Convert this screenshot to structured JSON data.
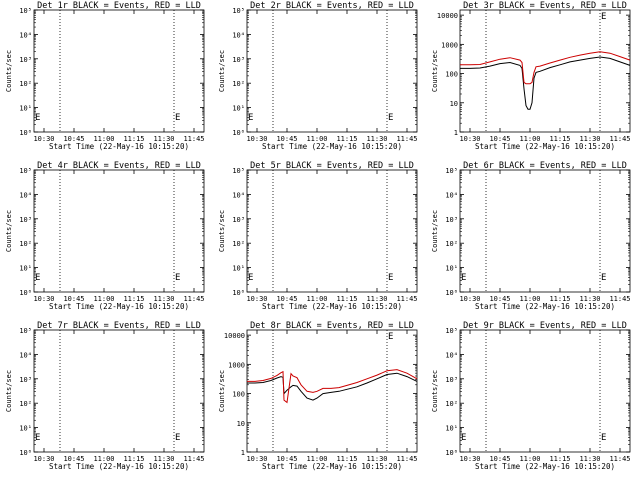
{
  "chart_data": [
    {
      "type": "line",
      "title": "Det 1r BLACK = Events, RED = LLD",
      "xlabel": "Start Time (22-May-16 10:15:20)",
      "ylabel": "Counts/sec",
      "x_ticks": [
        "10:30",
        "10:45",
        "11:00",
        "11:15",
        "11:30",
        "11:45"
      ],
      "y_scale": "log",
      "y_ticks": [
        "10⁰",
        "10¹",
        "10²",
        "10³",
        "10⁴",
        "10⁵"
      ],
      "ylim": [
        1,
        100000
      ],
      "xlim_minutes": [
        10,
        95
      ],
      "markers": [
        "E",
        "E"
      ],
      "marker_x_minutes": [
        10,
        80
      ],
      "dotted_x_minutes": [
        23,
        80
      ],
      "series": []
    },
    {
      "type": "line",
      "title": "Det 2r BLACK = Events, RED = LLD",
      "xlabel": "Start Time (22-May-16 10:15:20)",
      "ylabel": "Counts/sec",
      "x_ticks": [
        "10:30",
        "10:45",
        "11:00",
        "11:15",
        "11:30",
        "11:45"
      ],
      "y_scale": "log",
      "y_ticks": [
        "10⁰",
        "10¹",
        "10²",
        "10³",
        "10⁴",
        "10⁵"
      ],
      "ylim": [
        1,
        100000
      ],
      "xlim_minutes": [
        10,
        95
      ],
      "markers": [
        "E",
        "E"
      ],
      "marker_x_minutes": [
        10,
        80
      ],
      "dotted_x_minutes": [
        23,
        80
      ],
      "series": []
    },
    {
      "type": "line",
      "title": "Det 3r BLACK = Events, RED = LLD",
      "xlabel": "Start Time (22-May-16 10:15:20)",
      "ylabel": "Counts/sec",
      "x_ticks": [
        "10:30",
        "10:45",
        "11:00",
        "11:15",
        "11:30",
        "11:45"
      ],
      "y_scale": "log",
      "y_ticks": [
        "1",
        "10",
        "100",
        "1000",
        "10000"
      ],
      "ylim": [
        1,
        15000
      ],
      "xlim_minutes": [
        10,
        95
      ],
      "markers": [
        "E"
      ],
      "marker_x_minutes": [
        80
      ],
      "dotted_x_minutes": [
        23,
        80
      ],
      "series": [
        {
          "color": "#000000",
          "x": [
            10,
            15,
            20,
            25,
            30,
            35,
            40,
            41,
            42,
            43,
            44,
            45,
            46,
            47,
            48,
            50,
            55,
            60,
            65,
            70,
            75,
            80,
            85,
            90,
            95
          ],
          "y": [
            150,
            150,
            155,
            180,
            220,
            240,
            190,
            150,
            30,
            8,
            6,
            6,
            10,
            70,
            110,
            120,
            160,
            200,
            250,
            290,
            330,
            370,
            330,
            250,
            190
          ]
        },
        {
          "color": "#cc0000",
          "x": [
            10,
            15,
            20,
            25,
            30,
            35,
            40,
            41,
            42,
            43,
            44,
            45,
            46,
            47,
            48,
            50,
            55,
            60,
            65,
            70,
            75,
            80,
            85,
            90,
            95
          ],
          "y": [
            200,
            200,
            205,
            250,
            310,
            350,
            290,
            240,
            50,
            45,
            45,
            45,
            50,
            110,
            170,
            180,
            230,
            290,
            360,
            430,
            500,
            560,
            500,
            380,
            290
          ]
        }
      ]
    },
    {
      "type": "line",
      "title": "Det 4r BLACK = Events, RED = LLD",
      "xlabel": "Start Time (22-May-16 10:15:20)",
      "ylabel": "Counts/sec",
      "x_ticks": [
        "10:30",
        "10:45",
        "11:00",
        "11:15",
        "11:30",
        "11:45"
      ],
      "y_scale": "log",
      "y_ticks": [
        "10⁰",
        "10¹",
        "10²",
        "10³",
        "10⁴",
        "10⁵"
      ],
      "ylim": [
        1,
        100000
      ],
      "xlim_minutes": [
        10,
        95
      ],
      "markers": [
        "E",
        "E"
      ],
      "marker_x_minutes": [
        10,
        80
      ],
      "dotted_x_minutes": [
        23,
        80
      ],
      "series": []
    },
    {
      "type": "line",
      "title": "Det 5r BLACK = Events, RED = LLD",
      "xlabel": "Start Time (22-May-16 10:15:20)",
      "ylabel": "Counts/sec",
      "x_ticks": [
        "10:30",
        "10:45",
        "11:00",
        "11:15",
        "11:30",
        "11:45"
      ],
      "y_scale": "log",
      "y_ticks": [
        "10⁰",
        "10¹",
        "10²",
        "10³",
        "10⁴",
        "10⁵"
      ],
      "ylim": [
        1,
        100000
      ],
      "xlim_minutes": [
        10,
        95
      ],
      "markers": [
        "E",
        "E"
      ],
      "marker_x_minutes": [
        10,
        80
      ],
      "dotted_x_minutes": [
        23,
        80
      ],
      "series": []
    },
    {
      "type": "line",
      "title": "Det 6r BLACK = Events, RED = LLD",
      "xlabel": "Start Time (22-May-16 10:15:20)",
      "ylabel": "Counts/sec",
      "x_ticks": [
        "10:30",
        "10:45",
        "11:00",
        "11:15",
        "11:30",
        "11:45"
      ],
      "y_scale": "log",
      "y_ticks": [
        "10⁰",
        "10¹",
        "10²",
        "10³",
        "10⁴",
        "10⁵"
      ],
      "ylim": [
        1,
        100000
      ],
      "xlim_minutes": [
        10,
        95
      ],
      "markers": [
        "E",
        "E"
      ],
      "marker_x_minutes": [
        10,
        80
      ],
      "dotted_x_minutes": [
        23,
        80
      ],
      "series": []
    },
    {
      "type": "line",
      "title": "Det 7r BLACK = Events, RED = LLD",
      "xlabel": "Start Time (22-May-16 10:15:20)",
      "ylabel": "Counts/sec",
      "x_ticks": [
        "10:30",
        "10:45",
        "11:00",
        "11:15",
        "11:30",
        "11:45"
      ],
      "y_scale": "log",
      "y_ticks": [
        "10⁰",
        "10¹",
        "10²",
        "10³",
        "10⁴",
        "10⁵"
      ],
      "ylim": [
        1,
        100000
      ],
      "xlim_minutes": [
        10,
        95
      ],
      "markers": [
        "E",
        "E"
      ],
      "marker_x_minutes": [
        10,
        80
      ],
      "dotted_x_minutes": [
        23,
        80
      ],
      "series": []
    },
    {
      "type": "line",
      "title": "Det 8r BLACK = Events, RED = LLD",
      "xlabel": "Start Time (22-May-16 10:15:20)",
      "ylabel": "Counts/sec",
      "x_ticks": [
        "10:30",
        "10:45",
        "11:00",
        "11:15",
        "11:30",
        "11:45"
      ],
      "y_scale": "log",
      "y_ticks": [
        "1",
        "10",
        "100",
        "1000",
        "10000"
      ],
      "ylim": [
        1,
        15000
      ],
      "xlim_minutes": [
        10,
        95
      ],
      "markers": [
        "E"
      ],
      "marker_x_minutes": [
        80
      ],
      "dotted_x_minutes": [
        23,
        80
      ],
      "series": [
        {
          "color": "#000000",
          "x": [
            10,
            14,
            18,
            22,
            25,
            27,
            28,
            28.5,
            30,
            32,
            33,
            35,
            37,
            40,
            43,
            45,
            48,
            52,
            56,
            60,
            65,
            70,
            75,
            80,
            85,
            90,
            95
          ],
          "y": [
            230,
            230,
            240,
            280,
            340,
            380,
            360,
            100,
            130,
            170,
            190,
            180,
            120,
            70,
            60,
            70,
            100,
            110,
            120,
            140,
            170,
            230,
            320,
            450,
            500,
            380,
            260
          ]
        },
        {
          "color": "#cc0000",
          "x": [
            10,
            14,
            18,
            22,
            25,
            27,
            28,
            28.5,
            30,
            32,
            33,
            35,
            37,
            40,
            43,
            45,
            48,
            52,
            56,
            60,
            65,
            70,
            75,
            80,
            85,
            90,
            95
          ],
          "y": [
            260,
            260,
            280,
            330,
            420,
            520,
            560,
            60,
            50,
            480,
            400,
            350,
            200,
            120,
            110,
            120,
            150,
            150,
            160,
            190,
            240,
            320,
            430,
            600,
            660,
            500,
            320
          ]
        }
      ]
    },
    {
      "type": "line",
      "title": "Det 9r BLACK = Events, RED = LLD",
      "xlabel": "Start Time (22-May-16 10:15:20)",
      "ylabel": "Counts/sec",
      "x_ticks": [
        "10:30",
        "10:45",
        "11:00",
        "11:15",
        "11:30",
        "11:45"
      ],
      "y_scale": "log",
      "y_ticks": [
        "10⁰",
        "10¹",
        "10²",
        "10³",
        "10⁴",
        "10⁵"
      ],
      "ylim": [
        1,
        100000
      ],
      "xlim_minutes": [
        10,
        95
      ],
      "markers": [
        "E",
        "E"
      ],
      "marker_x_minutes": [
        10,
        80
      ],
      "dotted_x_minutes": [
        23,
        80
      ],
      "series": []
    }
  ]
}
